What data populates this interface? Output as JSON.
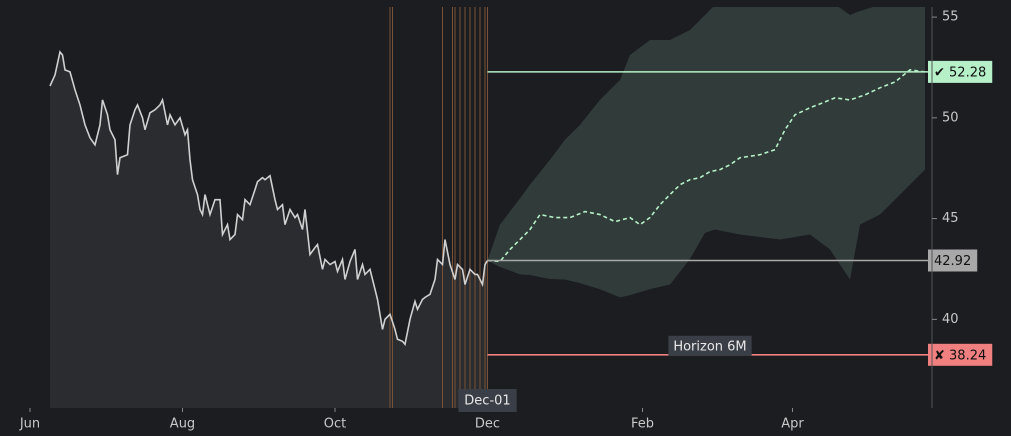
{
  "chart_data": {
    "type": "line",
    "xlim": [
      -8,
      364
    ],
    "ylim": [
      35.6,
      55.5
    ],
    "xticks": [
      {
        "value": 0,
        "label": "Jun"
      },
      {
        "value": 61,
        "label": "Aug"
      },
      {
        "value": 122,
        "label": "Oct"
      },
      {
        "value": 183,
        "label": "Dec"
      },
      {
        "value": 245,
        "label": "Feb"
      },
      {
        "value": 305,
        "label": "Apr"
      }
    ],
    "yticks": [
      40,
      45,
      50,
      55
    ],
    "history": {
      "color": "#d0d0d0",
      "x": [
        8,
        10,
        12,
        13,
        14,
        16,
        18,
        20,
        22,
        24,
        26,
        28,
        29,
        31,
        32,
        34,
        35,
        36,
        39,
        40,
        42,
        43,
        45,
        46,
        48,
        50,
        52,
        53,
        55,
        56,
        58,
        60,
        62,
        63,
        64,
        65,
        67,
        68,
        69,
        70,
        72,
        74,
        76,
        77,
        79,
        80,
        82,
        83,
        85,
        86,
        88,
        90,
        91,
        93,
        94,
        96,
        98,
        99,
        101,
        102,
        104,
        106,
        107,
        109,
        110,
        112,
        114,
        115,
        117,
        118,
        120,
        122,
        123,
        125,
        126,
        128,
        130,
        131,
        133,
        134,
        136,
        138,
        139,
        141,
        142,
        144,
        146,
        147,
        149,
        150,
        152,
        154,
        155,
        157,
        158,
        160,
        162,
        163,
        165,
        166,
        168,
        170,
        171,
        173,
        174,
        176,
        178,
        179,
        181,
        182,
        183
      ],
      "values": [
        51.58,
        52.13,
        53.27,
        53.12,
        52.38,
        52.28,
        51.39,
        50.64,
        49.65,
        49.01,
        48.66,
        49.65,
        50.89,
        50.15,
        49.41,
        48.91,
        47.18,
        48.02,
        48.17,
        49.65,
        50.4,
        50.64,
        50,
        49.41,
        50.25,
        50.4,
        50.64,
        50.89,
        49.65,
        50.15,
        49.65,
        50,
        49.16,
        49.41,
        47.92,
        46.93,
        46.19,
        45.45,
        45.2,
        46.19,
        45.2,
        45.94,
        45.94,
        44.21,
        44.7,
        43.96,
        44.21,
        45.2,
        44.95,
        45.94,
        45.69,
        46.44,
        46.83,
        47.03,
        46.93,
        47.13,
        45.94,
        45.45,
        45.69,
        44.7,
        45.45,
        45.05,
        45.2,
        44.46,
        45.45,
        43.22,
        43.56,
        43.71,
        42.48,
        42.97,
        42.72,
        42.87,
        42.38,
        42.97,
        41.98,
        42.87,
        43.47,
        41.98,
        42.72,
        42.23,
        42.48,
        41.49,
        40.99,
        39.5,
        40,
        40.25,
        39.5,
        39.01,
        38.91,
        38.76,
        40,
        40.89,
        40.5,
        40.99,
        41.09,
        41.24,
        41.98,
        42.97,
        42.72,
        43.96,
        42.72,
        41.98,
        42.72,
        42.48,
        41.73,
        42.48,
        42.23,
        42.23,
        41.73,
        42.72,
        42.92
      ]
    },
    "forecast": {
      "color": "#b5f0c8",
      "x": [
        183,
        188,
        192,
        196,
        200,
        204,
        210,
        216,
        222,
        228,
        234,
        240,
        244,
        248,
        252,
        256,
        260,
        264,
        268,
        272,
        276,
        280,
        284,
        292,
        298,
        302,
        306,
        312,
        318,
        322,
        328,
        334,
        340,
        346,
        352,
        358
      ],
      "values": [
        42.92,
        42.87,
        43.47,
        43.96,
        44.46,
        45.2,
        45.05,
        45.05,
        45.35,
        45.2,
        44.85,
        45.05,
        44.7,
        45.05,
        45.69,
        46.19,
        46.68,
        46.93,
        47.03,
        47.33,
        47.43,
        47.67,
        48.02,
        48.17,
        48.42,
        49.41,
        50.15,
        50.5,
        50.79,
        50.99,
        50.89,
        51.14,
        51.49,
        51.78,
        52.38,
        52.28
      ]
    },
    "band": {
      "color": "#34403d",
      "x": [
        183,
        188,
        196,
        200,
        208,
        214,
        220,
        228,
        236,
        240,
        248,
        256,
        264,
        270,
        274,
        284,
        300,
        312,
        320,
        328,
        332,
        340,
        348,
        358
      ],
      "upper": [
        42.92,
        44.7,
        46,
        46.68,
        47.92,
        48.91,
        49.65,
        50.89,
        51.88,
        53.12,
        53.86,
        53.86,
        54.36,
        55.1,
        55.6,
        55.8,
        55.8,
        55.8,
        55.8,
        55.1,
        55.3,
        55.6,
        55.6,
        55.6
      ],
      "lower": [
        42.92,
        42.6,
        42.23,
        42.2,
        42,
        41.98,
        41.8,
        41.49,
        41.09,
        41.2,
        41.5,
        41.73,
        43,
        44.3,
        44.46,
        44.21,
        43.96,
        44.21,
        43.47,
        41.98,
        44.7,
        45.2,
        46.19,
        47.43
      ]
    },
    "events": [
      144,
      145,
      165,
      169,
      170,
      172,
      174,
      176,
      178,
      180,
      182,
      183
    ],
    "forecast_start": {
      "value": 183,
      "label": "Dec-01"
    },
    "levels": [
      {
        "value": 52.28,
        "label": "✔ 52.28",
        "color": "#b5f0c8"
      },
      {
        "value": 42.92,
        "label": "42.92",
        "color": "#a8a8a8"
      },
      {
        "value": 38.24,
        "label": "✘ 38.24",
        "color": "#f08080"
      }
    ],
    "annotation": "Horizon 6M"
  }
}
